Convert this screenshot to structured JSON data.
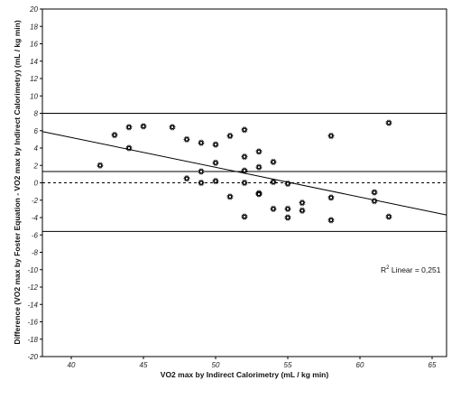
{
  "chart_data": {
    "type": "scatter",
    "title": "",
    "xlabel": "VO2 max by Indirect Calorimetry (mL / kg min)",
    "ylabel": "Difference (VO2 max by Foster Equation - VO2 max by Indirect Calorimetry) (mL / kg min)",
    "xlim": [
      38,
      66
    ],
    "ylim": [
      -20,
      20
    ],
    "xticks": [
      40,
      45,
      50,
      55,
      60,
      65
    ],
    "yticks": [
      20,
      18,
      16,
      14,
      12,
      10,
      8,
      6,
      4,
      2,
      0,
      -2,
      -4,
      -6,
      -8,
      -10,
      -12,
      -14,
      -16,
      -18,
      -20
    ],
    "grid": false,
    "points": [
      {
        "x": 42,
        "y": 2.0
      },
      {
        "x": 43,
        "y": 5.5
      },
      {
        "x": 44,
        "y": 6.4
      },
      {
        "x": 44,
        "y": 4.0
      },
      {
        "x": 45,
        "y": 6.5
      },
      {
        "x": 47,
        "y": 6.4
      },
      {
        "x": 48,
        "y": 5.0
      },
      {
        "x": 48,
        "y": 0.5
      },
      {
        "x": 49,
        "y": 4.6
      },
      {
        "x": 49,
        "y": 1.3
      },
      {
        "x": 49,
        "y": 0.0
      },
      {
        "x": 50,
        "y": 4.4
      },
      {
        "x": 50,
        "y": 2.3
      },
      {
        "x": 50,
        "y": 0.2
      },
      {
        "x": 51,
        "y": 5.4
      },
      {
        "x": 51,
        "y": -1.6
      },
      {
        "x": 52,
        "y": 6.1
      },
      {
        "x": 52,
        "y": 3.0
      },
      {
        "x": 52,
        "y": 1.4
      },
      {
        "x": 52,
        "y": 0.0
      },
      {
        "x": 52,
        "y": -3.9
      },
      {
        "x": 53,
        "y": 3.6
      },
      {
        "x": 53,
        "y": 1.8
      },
      {
        "x": 53,
        "y": -1.2
      },
      {
        "x": 53,
        "y": -1.3
      },
      {
        "x": 54,
        "y": 2.4
      },
      {
        "x": 54,
        "y": 0.1
      },
      {
        "x": 54,
        "y": -3.0
      },
      {
        "x": 55,
        "y": -0.1
      },
      {
        "x": 55,
        "y": -3.0
      },
      {
        "x": 55,
        "y": -4.0
      },
      {
        "x": 56,
        "y": -2.3
      },
      {
        "x": 56,
        "y": -3.2
      },
      {
        "x": 58,
        "y": 5.4
      },
      {
        "x": 58,
        "y": -1.7
      },
      {
        "x": 58,
        "y": -4.3
      },
      {
        "x": 61,
        "y": -1.1
      },
      {
        "x": 61,
        "y": -2.1
      },
      {
        "x": 62,
        "y": 6.9
      },
      {
        "x": 62,
        "y": -3.9
      }
    ],
    "reference_lines": {
      "mean": 1.3,
      "upper_limit": 8.0,
      "lower_limit": -5.6,
      "zero_dashed": 0
    },
    "fit_line": {
      "x": [
        38,
        66
      ],
      "y": [
        5.9,
        -3.7
      ]
    },
    "annotation": {
      "label": "R",
      "superscript": "2",
      "text": " Linear = 0,251"
    }
  }
}
